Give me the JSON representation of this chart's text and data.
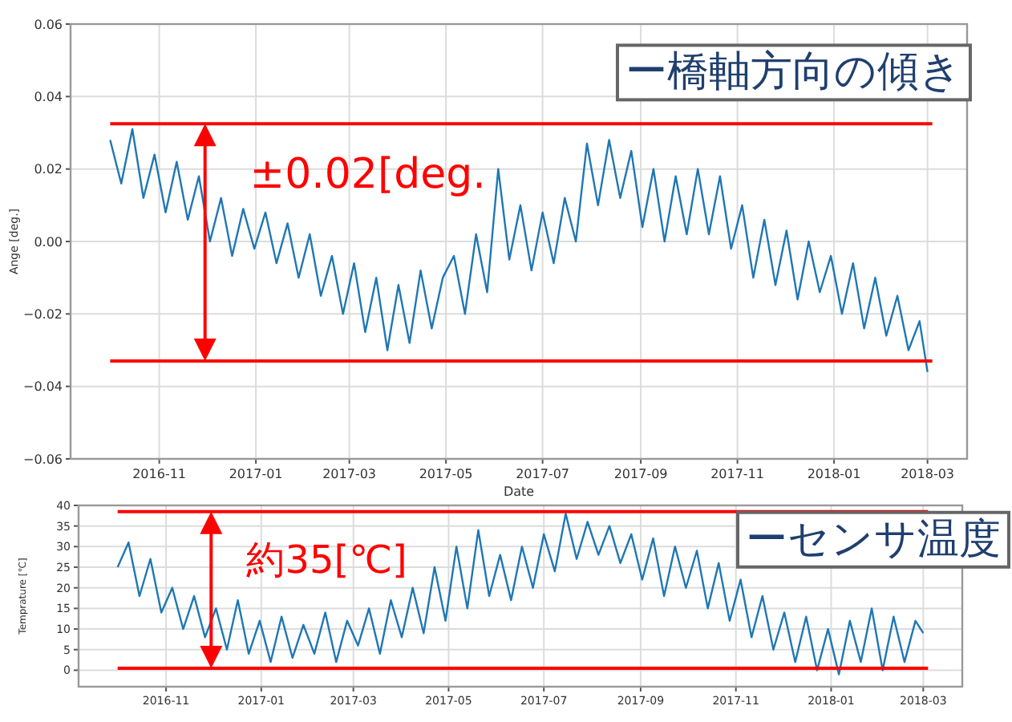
{
  "chart_data": [
    {
      "type": "line",
      "xlabel": "Date",
      "ylabel": "Ange [deg.]",
      "x": [
        "2016-10-01",
        "2016-10-08",
        "2016-10-15",
        "2016-10-22",
        "2016-10-29",
        "2016-11-05",
        "2016-11-12",
        "2016-11-19",
        "2016-11-26",
        "2016-12-03",
        "2016-12-10",
        "2016-12-17",
        "2016-12-24",
        "2016-12-31",
        "2017-01-07",
        "2017-01-14",
        "2017-01-21",
        "2017-01-28",
        "2017-02-04",
        "2017-02-11",
        "2017-02-18",
        "2017-02-25",
        "2017-03-04",
        "2017-03-11",
        "2017-03-18",
        "2017-03-25",
        "2017-04-01",
        "2017-04-08",
        "2017-04-15",
        "2017-04-22",
        "2017-04-29",
        "2017-05-06",
        "2017-05-13",
        "2017-05-20",
        "2017-05-27",
        "2017-06-03",
        "2017-06-10",
        "2017-06-17",
        "2017-06-24",
        "2017-07-01",
        "2017-07-08",
        "2017-07-15",
        "2017-07-22",
        "2017-07-29",
        "2017-08-05",
        "2017-08-12",
        "2017-08-19",
        "2017-08-26",
        "2017-09-02",
        "2017-09-09",
        "2017-09-16",
        "2017-09-23",
        "2017-09-30",
        "2017-10-07",
        "2017-10-14",
        "2017-10-21",
        "2017-10-28",
        "2017-11-04",
        "2017-11-11",
        "2017-11-18",
        "2017-11-25",
        "2017-12-02",
        "2017-12-09",
        "2017-12-16",
        "2017-12-23",
        "2017-12-30",
        "2018-01-06",
        "2018-01-13",
        "2018-01-20",
        "2018-01-27",
        "2018-02-03",
        "2018-02-10",
        "2018-02-17",
        "2018-02-24",
        "2018-03-01"
      ],
      "series": [
        {
          "color": "#1f77b4",
          "values": [
            0.028,
            0.016,
            0.031,
            0.012,
            0.024,
            0.008,
            0.022,
            0.006,
            0.018,
            0.0,
            0.012,
            -0.004,
            0.009,
            -0.002,
            0.008,
            -0.006,
            0.005,
            -0.01,
            0.002,
            -0.015,
            -0.004,
            -0.02,
            -0.006,
            -0.025,
            -0.01,
            -0.03,
            -0.012,
            -0.028,
            -0.008,
            -0.024,
            -0.01,
            -0.004,
            -0.02,
            0.002,
            -0.014,
            0.02,
            -0.005,
            0.01,
            -0.008,
            0.008,
            -0.006,
            0.012,
            0.0,
            0.027,
            0.01,
            0.028,
            0.012,
            0.025,
            0.004,
            0.02,
            0.0,
            0.018,
            0.002,
            0.02,
            0.002,
            0.018,
            -0.002,
            0.01,
            -0.01,
            0.006,
            -0.012,
            0.003,
            -0.016,
            0.0,
            -0.014,
            -0.004,
            -0.02,
            -0.006,
            -0.024,
            -0.01,
            -0.026,
            -0.015,
            -0.03,
            -0.022,
            -0.036
          ]
        }
      ],
      "xlim": [
        "2016-09-06",
        "2018-03-26"
      ],
      "xticks": [
        "2016-11",
        "2017-01",
        "2017-03",
        "2017-05",
        "2017-07",
        "2017-09",
        "2017-11",
        "2018-01",
        "2018-03"
      ],
      "ylim": [
        -0.06,
        0.06
      ],
      "yticks": [
        {
          "value": -0.06,
          "label": "−0.06"
        },
        {
          "value": -0.04,
          "label": "−0.04"
        },
        {
          "value": -0.02,
          "label": "−0.02"
        },
        {
          "value": 0,
          "label": "0.00"
        },
        {
          "value": 0.02,
          "label": "0.02"
        },
        {
          "value": 0.04,
          "label": "0.04"
        },
        {
          "value": 0.06,
          "label": "0.06"
        }
      ],
      "grid": true,
      "ref_lines": [
        {
          "axis": "y",
          "value": 0.0325,
          "color": "#ff0000"
        },
        {
          "axis": "y",
          "value": -0.033,
          "color": "#ff0000"
        }
      ],
      "annotations": [
        "±0.02[deg.",
        "ー橋軸方向の傾き"
      ]
    },
    {
      "type": "line",
      "ylabel": "Temprature [℃]",
      "x": [
        "2016-10-01",
        "2016-10-08",
        "2016-10-15",
        "2016-10-22",
        "2016-10-29",
        "2016-11-05",
        "2016-11-12",
        "2016-11-19",
        "2016-11-26",
        "2016-12-03",
        "2016-12-10",
        "2016-12-17",
        "2016-12-24",
        "2016-12-31",
        "2017-01-07",
        "2017-01-14",
        "2017-01-21",
        "2017-01-28",
        "2017-02-04",
        "2017-02-11",
        "2017-02-18",
        "2017-02-25",
        "2017-03-04",
        "2017-03-11",
        "2017-03-18",
        "2017-03-25",
        "2017-04-01",
        "2017-04-08",
        "2017-04-15",
        "2017-04-22",
        "2017-04-29",
        "2017-05-06",
        "2017-05-13",
        "2017-05-20",
        "2017-05-27",
        "2017-06-03",
        "2017-06-10",
        "2017-06-17",
        "2017-06-24",
        "2017-07-01",
        "2017-07-08",
        "2017-07-15",
        "2017-07-22",
        "2017-07-29",
        "2017-08-05",
        "2017-08-12",
        "2017-08-19",
        "2017-08-26",
        "2017-09-02",
        "2017-09-09",
        "2017-09-16",
        "2017-09-23",
        "2017-09-30",
        "2017-10-07",
        "2017-10-14",
        "2017-10-21",
        "2017-10-28",
        "2017-11-04",
        "2017-11-11",
        "2017-11-18",
        "2017-11-25",
        "2017-12-02",
        "2017-12-09",
        "2017-12-16",
        "2017-12-23",
        "2017-12-30",
        "2018-01-06",
        "2018-01-13",
        "2018-01-20",
        "2018-01-27",
        "2018-02-03",
        "2018-02-10",
        "2018-02-17",
        "2018-02-24",
        "2018-03-01"
      ],
      "series": [
        {
          "color": "#1f77b4",
          "values": [
            25,
            31,
            18,
            27,
            14,
            20,
            10,
            18,
            8,
            15,
            5,
            17,
            4,
            12,
            2,
            13,
            3,
            11,
            4,
            14,
            2,
            12,
            6,
            15,
            4,
            17,
            8,
            20,
            9,
            25,
            12,
            30,
            15,
            34,
            18,
            28,
            17,
            30,
            20,
            33,
            24,
            38,
            27,
            36,
            28,
            35,
            26,
            33,
            22,
            32,
            18,
            30,
            20,
            29,
            15,
            26,
            12,
            22,
            8,
            18,
            5,
            14,
            2,
            13,
            0,
            10,
            -1,
            12,
            2,
            15,
            0,
            13,
            2,
            12,
            9
          ]
        }
      ],
      "xlim": [
        "2016-09-06",
        "2018-03-26"
      ],
      "xticks": [
        "2016-11",
        "2017-01",
        "2017-03",
        "2017-05",
        "2017-07",
        "2017-09",
        "2017-11",
        "2018-01",
        "2018-03"
      ],
      "ylim": [
        -4,
        40
      ],
      "yticks": [
        0,
        5,
        10,
        15,
        20,
        25,
        30,
        35,
        40
      ],
      "grid": true,
      "ref_lines": [
        {
          "axis": "y",
          "value": 38.5,
          "color": "#ff0000"
        },
        {
          "axis": "y",
          "value": 0.5,
          "color": "#ff0000"
        }
      ],
      "annotations": [
        "約35[℃]",
        "ーセンサ温度"
      ]
    }
  ]
}
